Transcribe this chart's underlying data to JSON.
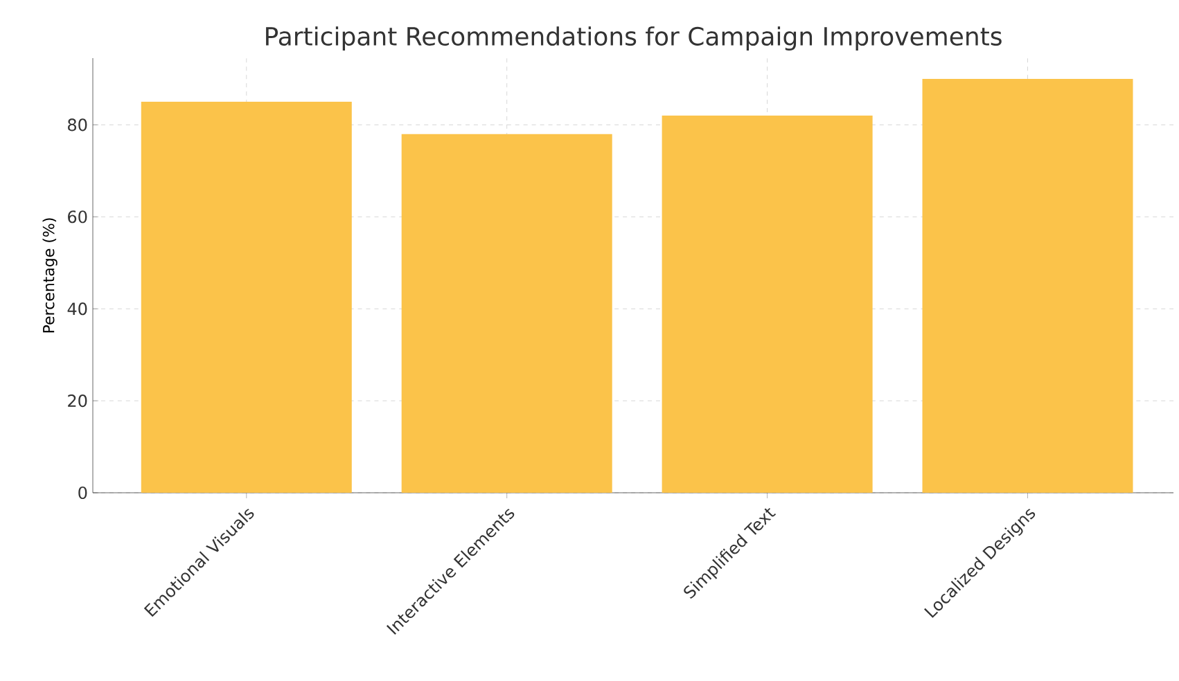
{
  "chart_data": {
    "type": "bar",
    "title": "Participant Recommendations for Campaign Improvements",
    "ylabel": "Percentage (%)",
    "categories": [
      "Emotional Visuals",
      "Interactive Elements",
      "Simplified Text",
      "Localized Designs"
    ],
    "values": [
      85,
      78,
      82,
      90
    ],
    "color": "#fbc34a",
    "ylim": [
      0,
      94.5
    ],
    "yticks": [
      0,
      20,
      40,
      60,
      80
    ],
    "grid": true
  }
}
